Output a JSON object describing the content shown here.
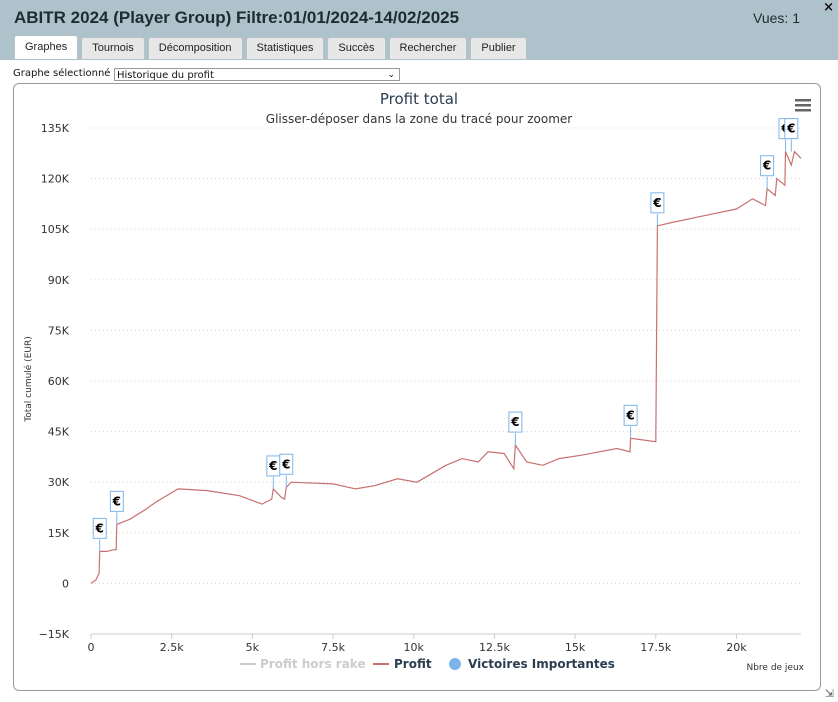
{
  "window": {
    "title": "ABITR 2024 (Player Group) Filtre:01/01/2024-14/02/2025",
    "views": "Vues: 1",
    "close_glyph": "×"
  },
  "tabs": [
    {
      "label": "Graphes",
      "active": true
    },
    {
      "label": "Tournois"
    },
    {
      "label": "Décomposition"
    },
    {
      "label": "Statistiques"
    },
    {
      "label": "Succès"
    },
    {
      "label": "Rechercher"
    },
    {
      "label": "Publier"
    }
  ],
  "graph_select": {
    "label": "Graphe sélectionné :",
    "value": "Historique du profit"
  },
  "chart_data": {
    "type": "line",
    "title": "Profit total",
    "subtitle": "Glisser-déposer dans la zone du tracé pour zoomer",
    "xlabel": "Nbre de jeux",
    "ylabel": "Total cumulé (EUR)",
    "xlim": [
      0,
      22000
    ],
    "ylim": [
      -15000,
      135000
    ],
    "x_ticks": [
      0,
      2500,
      5000,
      7500,
      10000,
      12500,
      15000,
      17500,
      20000
    ],
    "x_tick_labels": [
      "0",
      "2.5k",
      "5k",
      "7.5k",
      "10k",
      "12.5k",
      "15k",
      "17.5k",
      "20k"
    ],
    "y_ticks": [
      -15000,
      0,
      15000,
      30000,
      45000,
      60000,
      75000,
      90000,
      105000,
      120000,
      135000
    ],
    "y_tick_labels": [
      "−15K",
      "0",
      "15K",
      "30K",
      "45K",
      "60K",
      "75K",
      "90K",
      "105K",
      "120K",
      "135K"
    ],
    "grid": true,
    "legend_position": "bottom",
    "series": [
      {
        "name": "Profit hors rake",
        "color": "#cccccc",
        "hidden": true,
        "values": []
      },
      {
        "name": "Profit",
        "color": "#c97070",
        "x": [
          0,
          150,
          250,
          270,
          500,
          700,
          780,
          800,
          1200,
          1700,
          2000,
          2700,
          3600,
          4600,
          5300,
          5600,
          5650,
          5900,
          6000,
          6050,
          6200,
          7500,
          8200,
          8800,
          9500,
          10100,
          11000,
          11500,
          12000,
          12300,
          12800,
          13100,
          13150,
          13500,
          14000,
          14500,
          15200,
          16300,
          16700,
          16720,
          17500,
          17550,
          18000,
          19000,
          20000,
          20500,
          20900,
          20950,
          21200,
          21250,
          21500,
          21520,
          21700,
          21800,
          22000
        ],
        "y": [
          0,
          1000,
          3000,
          9500,
          9500,
          10000,
          10000,
          17500,
          19000,
          22000,
          24000,
          28000,
          27500,
          26000,
          23500,
          25000,
          28000,
          25500,
          25000,
          28500,
          30000,
          29500,
          28000,
          29000,
          31000,
          30000,
          35000,
          37000,
          36000,
          39000,
          38500,
          34000,
          41000,
          36000,
          35000,
          37000,
          38000,
          40000,
          39000,
          43000,
          42000,
          106000,
          107000,
          109000,
          111000,
          114000,
          112000,
          117000,
          115000,
          120000,
          118000,
          128000,
          124000,
          128000,
          126000
        ]
      },
      {
        "name": "Victoires Importantes",
        "color": "#7cb5ec",
        "marker": "€",
        "x": [
          270,
          800,
          5650,
          6050,
          13150,
          16720,
          17550,
          20950,
          21520,
          21700
        ],
        "y": [
          9500,
          17500,
          28000,
          28500,
          41000,
          43000,
          106000,
          117000,
          128000,
          128000
        ]
      }
    ]
  }
}
